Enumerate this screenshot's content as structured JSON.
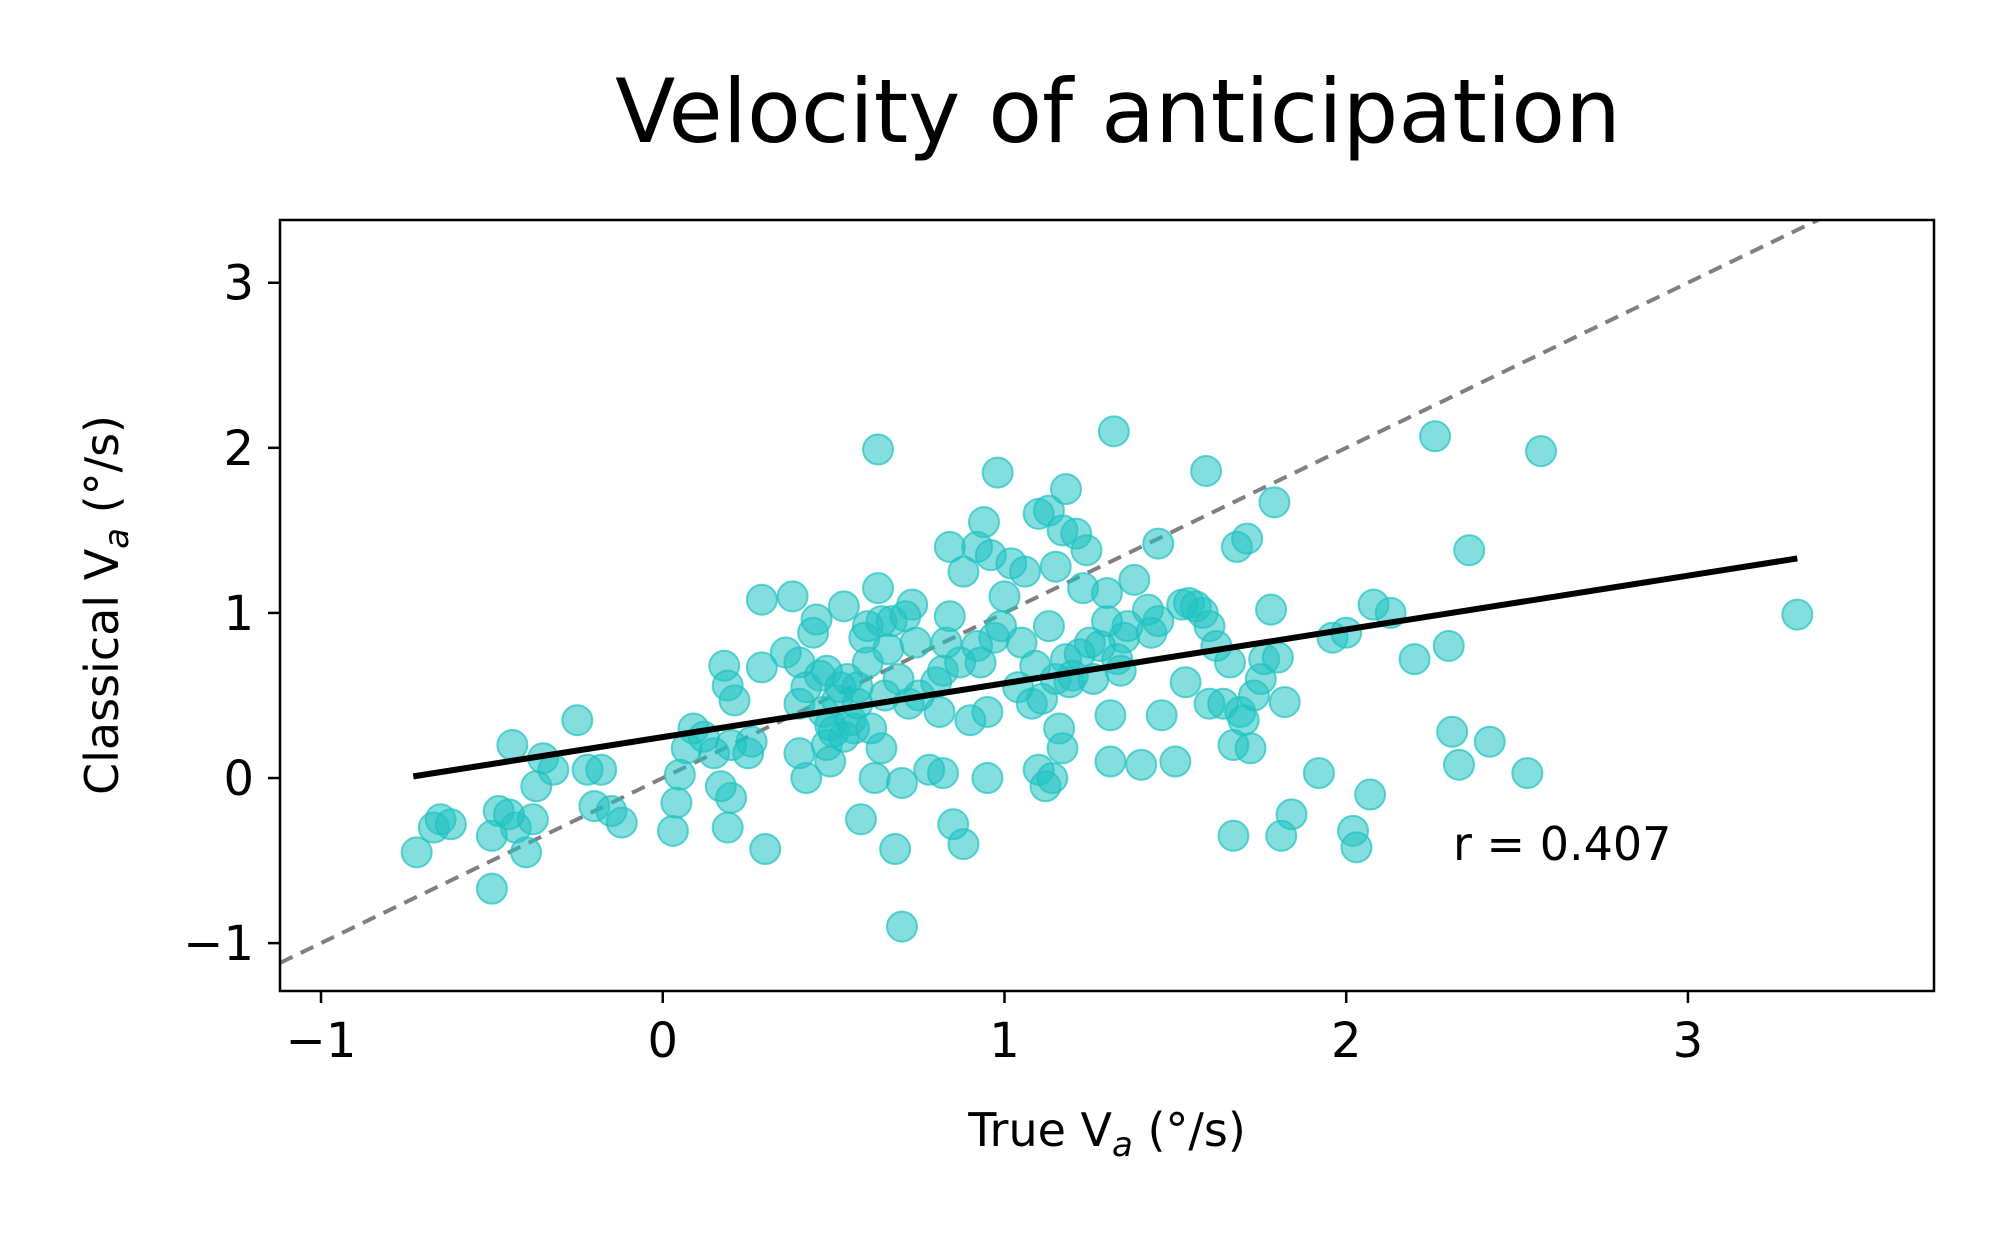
{
  "chart_data": {
    "type": "scatter",
    "title": "Velocity of anticipation",
    "xlabel": {
      "text": "True V",
      "sub": "a",
      "unit": " (°/s)"
    },
    "ylabel": {
      "text": "Classical V",
      "sub": "a",
      "unit": " (°/s)"
    },
    "xlim": [
      -1.12,
      3.72
    ],
    "ylim": [
      -1.29,
      3.38
    ],
    "xticks": [
      -1,
      0,
      1,
      2,
      3
    ],
    "yticks": [
      -1,
      0,
      1,
      2,
      3
    ],
    "xtick_labels": [
      "−1",
      "0",
      "1",
      "2",
      "3"
    ],
    "ytick_labels": [
      "−1",
      "0",
      "1",
      "2",
      "3"
    ],
    "grid": false,
    "point_color": "#20c2c2",
    "point_alpha": 0.55,
    "annotation": "r = 0.407",
    "reference_line": {
      "style": "dashed",
      "color": "#808080",
      "slope": 1,
      "intercept": 0
    },
    "fit_line": {
      "color": "#000000",
      "x": [
        -0.73,
        3.32
      ],
      "y": [
        0.01,
        1.33
      ]
    },
    "points": [
      [
        -0.72,
        -0.45
      ],
      [
        -0.67,
        -0.3
      ],
      [
        -0.65,
        -0.25
      ],
      [
        -0.62,
        -0.28
      ],
      [
        -0.5,
        -0.67
      ],
      [
        -0.5,
        -0.35
      ],
      [
        -0.48,
        -0.2
      ],
      [
        -0.45,
        -0.22
      ],
      [
        -0.44,
        0.2
      ],
      [
        -0.43,
        -0.3
      ],
      [
        -0.4,
        -0.45
      ],
      [
        -0.38,
        -0.25
      ],
      [
        -0.37,
        -0.05
      ],
      [
        -0.35,
        0.12
      ],
      [
        -0.32,
        0.05
      ],
      [
        -0.25,
        0.35
      ],
      [
        -0.22,
        0.05
      ],
      [
        -0.18,
        0.05
      ],
      [
        -0.2,
        -0.17
      ],
      [
        -0.15,
        -0.2
      ],
      [
        -0.12,
        -0.27
      ],
      [
        0.03,
        -0.32
      ],
      [
        0.04,
        -0.15
      ],
      [
        0.05,
        0.02
      ],
      [
        0.07,
        0.18
      ],
      [
        0.09,
        0.3
      ],
      [
        0.12,
        0.25
      ],
      [
        0.15,
        0.15
      ],
      [
        0.17,
        -0.05
      ],
      [
        0.18,
        0.68
      ],
      [
        0.19,
        0.56
      ],
      [
        0.19,
        -0.3
      ],
      [
        0.2,
        0.2
      ],
      [
        0.2,
        -0.12
      ],
      [
        0.21,
        0.47
      ],
      [
        0.25,
        0.15
      ],
      [
        0.26,
        0.22
      ],
      [
        0.29,
        1.08
      ],
      [
        0.29,
        0.67
      ],
      [
        0.3,
        -0.43
      ],
      [
        0.36,
        0.76
      ],
      [
        0.38,
        1.1
      ],
      [
        0.4,
        0.7
      ],
      [
        0.4,
        0.15
      ],
      [
        0.4,
        0.45
      ],
      [
        0.42,
        0.55
      ],
      [
        0.42,
        0.0
      ],
      [
        0.44,
        0.88
      ],
      [
        0.45,
        0.96
      ],
      [
        0.46,
        0.62
      ],
      [
        0.47,
        0.4
      ],
      [
        0.48,
        0.65
      ],
      [
        0.48,
        0.2
      ],
      [
        0.49,
        0.1
      ],
      [
        0.49,
        0.32
      ],
      [
        0.5,
        0.28
      ],
      [
        0.51,
        0.47
      ],
      [
        0.52,
        0.55
      ],
      [
        0.53,
        1.04
      ],
      [
        0.53,
        0.25
      ],
      [
        0.54,
        0.6
      ],
      [
        0.55,
        0.35
      ],
      [
        0.56,
        0.3
      ],
      [
        0.57,
        0.45
      ],
      [
        0.57,
        0.55
      ],
      [
        0.58,
        -0.25
      ],
      [
        0.59,
        0.85
      ],
      [
        0.6,
        0.7
      ],
      [
        0.6,
        0.92
      ],
      [
        0.61,
        0.3
      ],
      [
        0.62,
        0.0
      ],
      [
        0.63,
        1.99
      ],
      [
        0.63,
        1.15
      ],
      [
        0.64,
        0.95
      ],
      [
        0.64,
        0.18
      ],
      [
        0.65,
        0.5
      ],
      [
        0.66,
        0.78
      ],
      [
        0.67,
        0.95
      ],
      [
        0.68,
        -0.43
      ],
      [
        0.69,
        0.6
      ],
      [
        0.7,
        -0.9
      ],
      [
        0.7,
        -0.03
      ],
      [
        0.71,
        0.98
      ],
      [
        0.72,
        0.45
      ],
      [
        0.73,
        1.05
      ],
      [
        0.74,
        0.82
      ],
      [
        0.75,
        0.5
      ],
      [
        0.78,
        0.05
      ],
      [
        0.8,
        0.58
      ],
      [
        0.81,
        0.4
      ],
      [
        0.82,
        0.65
      ],
      [
        0.82,
        0.03
      ],
      [
        0.83,
        0.82
      ],
      [
        0.84,
        0.98
      ],
      [
        0.84,
        1.4
      ],
      [
        0.85,
        -0.28
      ],
      [
        0.87,
        0.7
      ],
      [
        0.88,
        -0.4
      ],
      [
        0.88,
        1.25
      ],
      [
        0.9,
        0.35
      ],
      [
        0.92,
        1.4
      ],
      [
        0.92,
        0.8
      ],
      [
        0.93,
        0.7
      ],
      [
        0.94,
        1.55
      ],
      [
        0.95,
        0.0
      ],
      [
        0.95,
        0.4
      ],
      [
        0.96,
        1.35
      ],
      [
        0.97,
        0.85
      ],
      [
        0.98,
        1.85
      ],
      [
        0.99,
        0.92
      ],
      [
        1.0,
        1.1
      ],
      [
        1.02,
        1.3
      ],
      [
        1.04,
        0.55
      ],
      [
        1.05,
        0.82
      ],
      [
        1.06,
        1.25
      ],
      [
        1.08,
        0.45
      ],
      [
        1.09,
        0.68
      ],
      [
        1.1,
        0.05
      ],
      [
        1.1,
        1.6
      ],
      [
        1.11,
        0.48
      ],
      [
        1.12,
        -0.05
      ],
      [
        1.13,
        1.62
      ],
      [
        1.13,
        0.92
      ],
      [
        1.14,
        0.0
      ],
      [
        1.15,
        1.28
      ],
      [
        1.15,
        0.6
      ],
      [
        1.16,
        0.3
      ],
      [
        1.17,
        0.18
      ],
      [
        1.17,
        1.5
      ],
      [
        1.18,
        1.75
      ],
      [
        1.18,
        0.72
      ],
      [
        1.19,
        0.58
      ],
      [
        1.2,
        0.62
      ],
      [
        1.21,
        1.48
      ],
      [
        1.22,
        0.75
      ],
      [
        1.23,
        1.15
      ],
      [
        1.24,
        1.38
      ],
      [
        1.25,
        0.82
      ],
      [
        1.26,
        0.6
      ],
      [
        1.28,
        0.8
      ],
      [
        1.3,
        0.95
      ],
      [
        1.3,
        1.12
      ],
      [
        1.31,
        0.1
      ],
      [
        1.31,
        0.38
      ],
      [
        1.32,
        2.1
      ],
      [
        1.33,
        0.72
      ],
      [
        1.34,
        0.65
      ],
      [
        1.35,
        0.85
      ],
      [
        1.36,
        0.92
      ],
      [
        1.38,
        1.2
      ],
      [
        1.4,
        0.08
      ],
      [
        1.42,
        1.02
      ],
      [
        1.43,
        0.88
      ],
      [
        1.45,
        0.95
      ],
      [
        1.45,
        1.42
      ],
      [
        1.46,
        0.38
      ],
      [
        1.5,
        0.1
      ],
      [
        1.52,
        1.05
      ],
      [
        1.53,
        0.58
      ],
      [
        1.54,
        1.06
      ],
      [
        1.56,
        1.04
      ],
      [
        1.58,
        1.0
      ],
      [
        1.59,
        1.86
      ],
      [
        1.6,
        0.92
      ],
      [
        1.6,
        0.45
      ],
      [
        1.62,
        0.8
      ],
      [
        1.64,
        0.45
      ],
      [
        1.66,
        0.7
      ],
      [
        1.67,
        -0.35
      ],
      [
        1.67,
        0.2
      ],
      [
        1.68,
        1.4
      ],
      [
        1.69,
        0.4
      ],
      [
        1.7,
        0.35
      ],
      [
        1.71,
        1.45
      ],
      [
        1.72,
        0.18
      ],
      [
        1.73,
        0.5
      ],
      [
        1.75,
        0.6
      ],
      [
        1.76,
        0.72
      ],
      [
        1.78,
        1.02
      ],
      [
        1.79,
        1.67
      ],
      [
        1.8,
        0.73
      ],
      [
        1.81,
        -0.35
      ],
      [
        1.82,
        0.46
      ],
      [
        1.84,
        -0.22
      ],
      [
        1.92,
        0.03
      ],
      [
        1.96,
        0.85
      ],
      [
        2.0,
        0.88
      ],
      [
        2.02,
        -0.32
      ],
      [
        2.03,
        -0.42
      ],
      [
        2.07,
        -0.1
      ],
      [
        2.08,
        1.05
      ],
      [
        2.13,
        1.0
      ],
      [
        2.2,
        0.72
      ],
      [
        2.26,
        2.07
      ],
      [
        2.3,
        0.8
      ],
      [
        2.31,
        0.28
      ],
      [
        2.33,
        0.08
      ],
      [
        2.36,
        1.38
      ],
      [
        2.42,
        0.22
      ],
      [
        2.53,
        0.03
      ],
      [
        2.57,
        1.98
      ],
      [
        3.32,
        0.99
      ]
    ]
  }
}
